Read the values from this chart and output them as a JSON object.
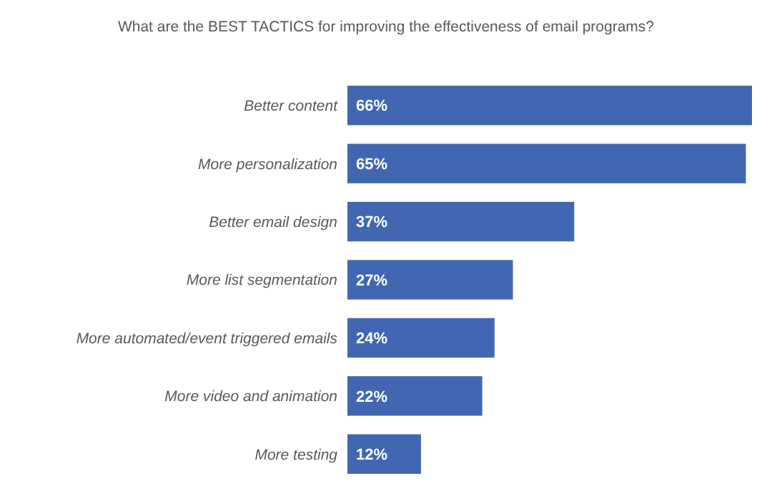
{
  "chart_data": {
    "type": "bar",
    "orientation": "horizontal",
    "title": "What are the BEST TACTICS for improving the effectiveness of email programs?",
    "categories": [
      "Better content",
      "More personalization",
      "Better email design",
      "More list segmentation",
      "More automated/event triggered emails",
      "More video and animation",
      "More testing"
    ],
    "values": [
      66,
      65,
      37,
      27,
      24,
      22,
      12
    ],
    "value_labels": [
      "66%",
      "65%",
      "37%",
      "27%",
      "24%",
      "22%",
      "12%"
    ],
    "color": "#4267b2"
  }
}
